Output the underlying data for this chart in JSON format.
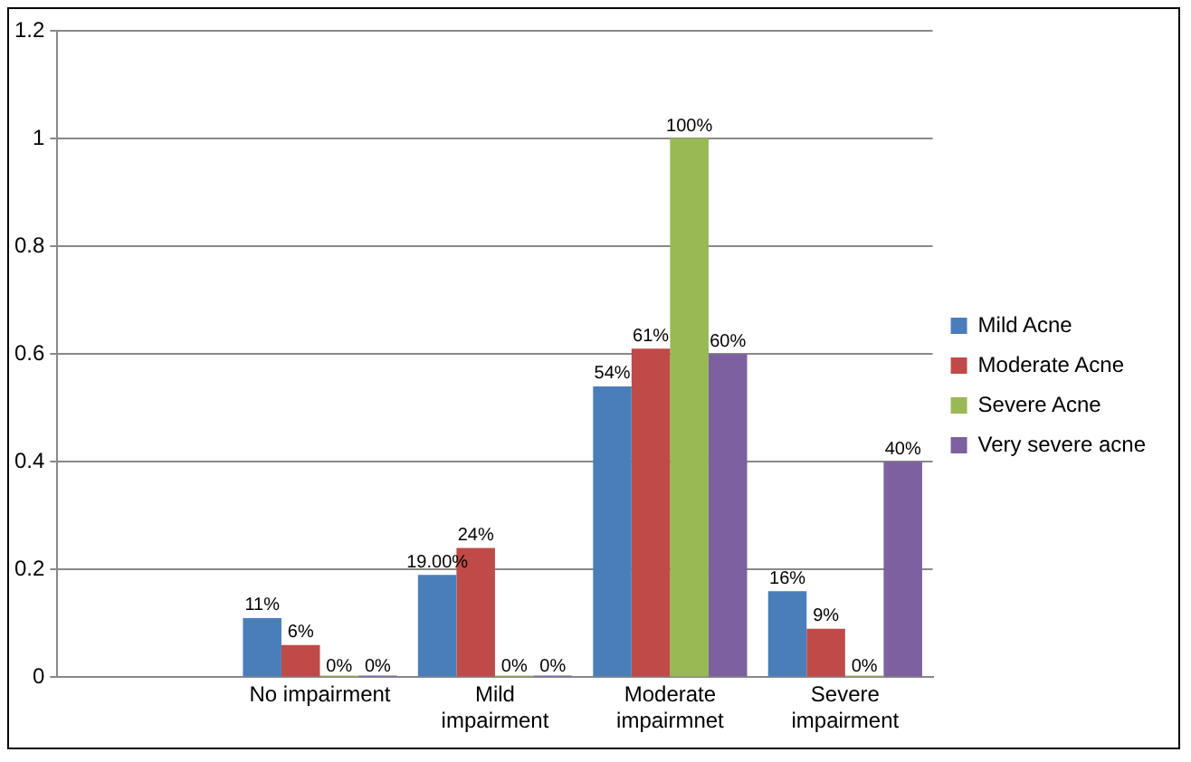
{
  "chart_data": {
    "type": "bar",
    "categories": [
      null,
      "No impairment",
      "Mild impairment",
      "Moderate impairmnet",
      "Severe impairment"
    ],
    "series": [
      {
        "name": "Mild Acne",
        "color": "#4a7ebb",
        "values": [
          null,
          0.11,
          0.19,
          0.54,
          0.16
        ],
        "value_labels": [
          null,
          "11%",
          "19.00%",
          "54%",
          "16%"
        ]
      },
      {
        "name": "Moderate Acne",
        "color": "#be4b48",
        "values": [
          null,
          0.06,
          0.24,
          0.61,
          0.09
        ],
        "value_labels": [
          null,
          "6%",
          "24%",
          "61%",
          "9%"
        ]
      },
      {
        "name": "Severe Acne",
        "color": "#98b954",
        "values": [
          null,
          0,
          0,
          1,
          0
        ],
        "value_labels": [
          null,
          "0%",
          "0%",
          "100%",
          "0%"
        ]
      },
      {
        "name": "Very severe acne",
        "color": "#7d60a0",
        "values": [
          null,
          0,
          0,
          0.6,
          0.4
        ],
        "value_labels": [
          null,
          "0%",
          "0%",
          "60%",
          "40%"
        ]
      }
    ],
    "ylim": [
      0,
      1.2
    ],
    "yticks": [
      0,
      0.2,
      0.4,
      0.6,
      0.8,
      1,
      1.2
    ],
    "grid": "y",
    "legend": "right"
  }
}
